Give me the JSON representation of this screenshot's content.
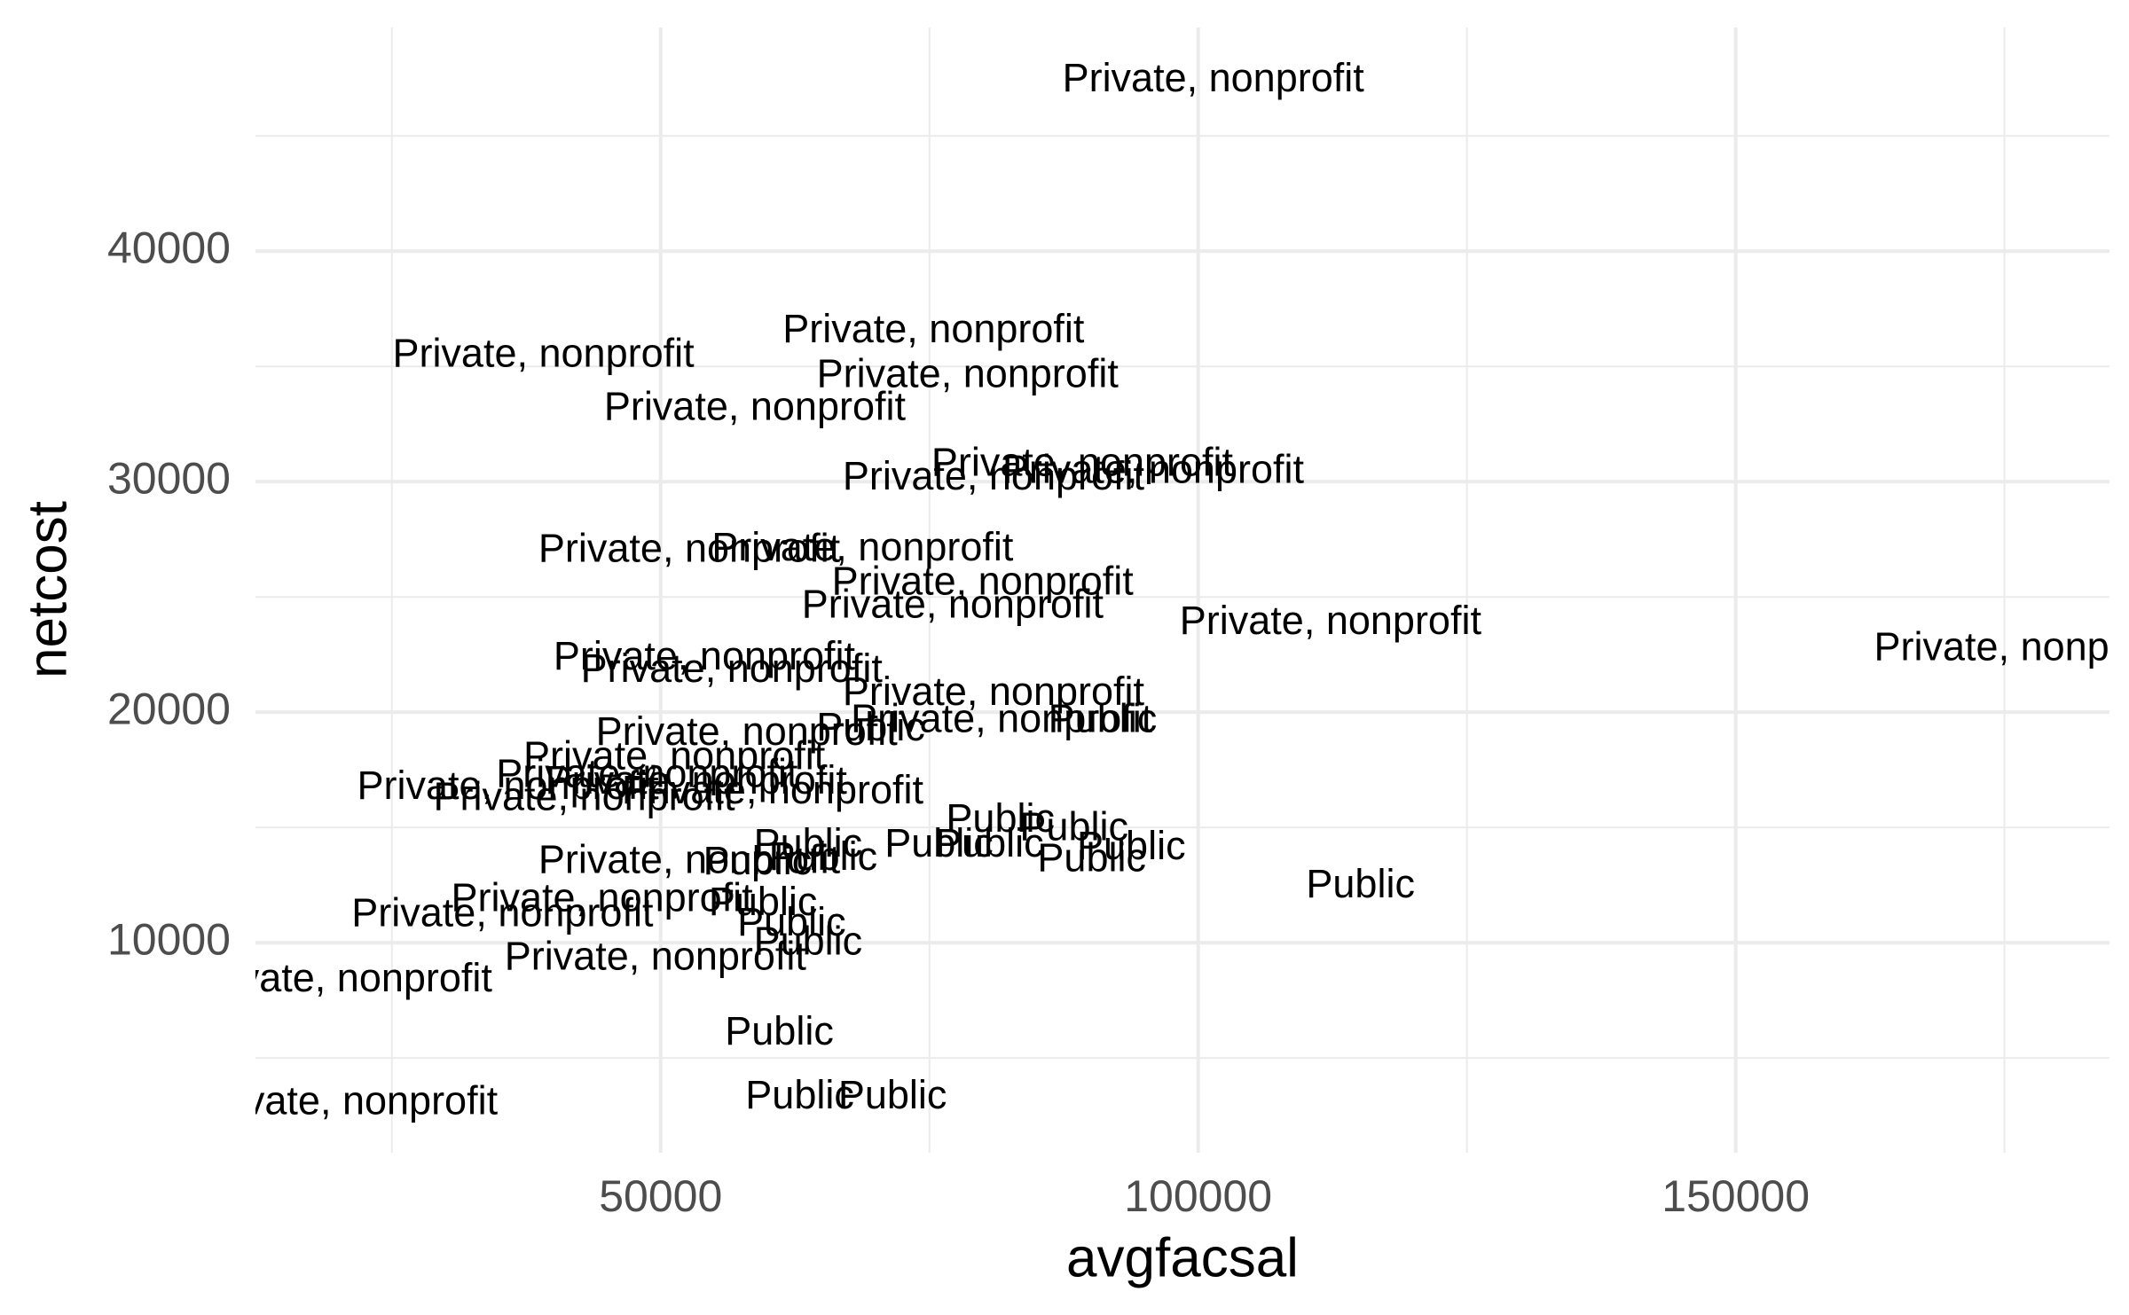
{
  "chart_data": {
    "type": "scatter",
    "xlabel": "avgfacsal",
    "ylabel": "netcost",
    "xlim": [
      12310,
      184770
    ],
    "ylim": [
      888,
      49704
    ],
    "xticks": [
      50000,
      100000,
      150000
    ],
    "yticks": [
      10000,
      20000,
      30000,
      40000
    ],
    "x_minor_ticks": [
      25000,
      75000,
      125000,
      175000
    ],
    "y_minor_ticks": [
      5000,
      15000,
      25000,
      35000,
      45000
    ],
    "grid": true,
    "color": "#000000",
    "x": [
      101400,
      75380,
      39090,
      78550,
      58760,
      89210,
      95810,
      80960,
      52660,
      68780,
      79950,
      77160,
      112310,
      176900,
      54060,
      56600,
      80960,
      58000,
      81720,
      69540,
      91110,
      51270,
      48730,
      35790,
      42890,
      60410,
      53300,
      81600,
      88450,
      93780,
      75890,
      80580,
      90100,
      63710,
      65110,
      59010,
      115100,
      52660,
      44540,
      35280,
      49510,
      20300,
      20810,
      59520,
      62180,
      63710,
      61040,
      62940,
      71570
    ],
    "y": [
      47400,
      36510,
      35440,
      34560,
      33140,
      30710,
      30410,
      30120,
      26980,
      27040,
      25560,
      24560,
      23850,
      22720,
      22310,
      21780,
      20770,
      19050,
      19590,
      19240,
      19590,
      17990,
      17220,
      16690,
      16210,
      16510,
      16920,
      15270,
      14910,
      14080,
      14200,
      14200,
      13550,
      14200,
      13610,
      13430,
      12430,
      13490,
      11830,
      11180,
      9290,
      8340,
      3020,
      11650,
      10770,
      9940,
      6040,
      3260,
      3260
    ],
    "labels": [
      "Private, nonprofit",
      "Private, nonprofit",
      "Private, nonprofit",
      "Private, nonprofit",
      "Private, nonprofit",
      "Private, nonprofit",
      "Private, nonprofit",
      "Private, nonprofit",
      "Private, nonprofit",
      "Private, nonprofit",
      "Private, nonprofit",
      "Private, nonprofit",
      "Private, nonprofit",
      "Private, nonprofit",
      "Private, nonprofit",
      "Private, nonprofit",
      "Private, nonprofit",
      "Private, nonprofit",
      "Private, nonprofit",
      "Public",
      "Public",
      "Private, nonprofit",
      "Private, nonprofit",
      "Private, nonprofit",
      "Private, nonprofit",
      "Private, nonprofit",
      "Private, nonprofit",
      "Public",
      "Public",
      "Public",
      "Public",
      "Public",
      "Public",
      "Public",
      "Public",
      "Public",
      "Public",
      "Private, nonprofit",
      "Private, nonprofit",
      "Private, nonprofit",
      "Private, nonprofit",
      "Private, nonprofit",
      "Private, nonprofit",
      "Public",
      "Public",
      "Public",
      "Public",
      "Public",
      "Public"
    ]
  }
}
